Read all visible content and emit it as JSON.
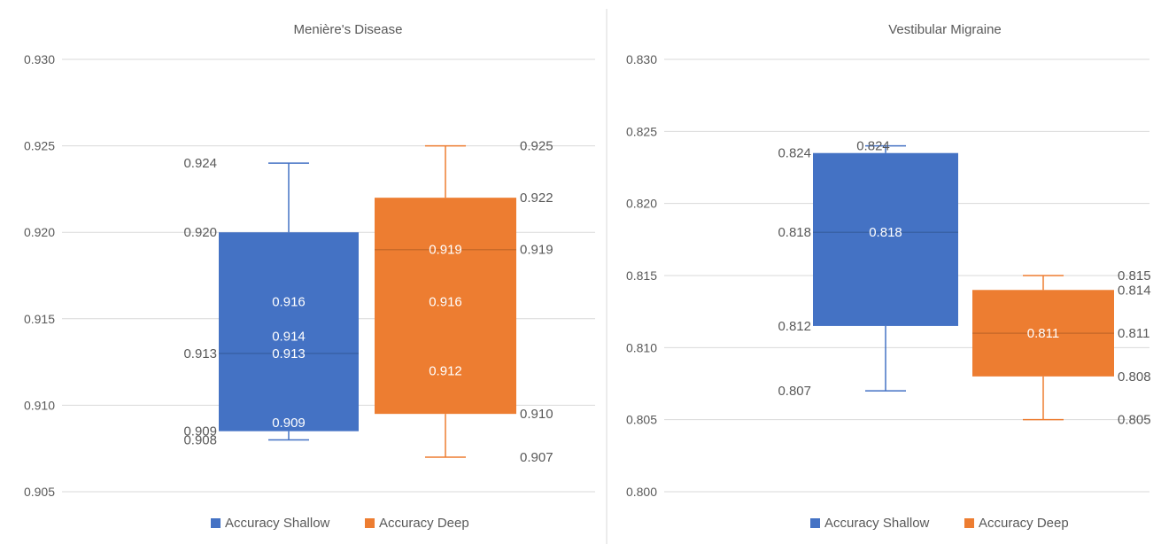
{
  "colors": {
    "shallow": "#4472c4",
    "deep": "#ed7d31",
    "grid": "#d9d9d9",
    "text": "#595959",
    "background": "#ffffff"
  },
  "chart_data": [
    {
      "type": "boxplot",
      "title": "Menière's Disease",
      "ylim": [
        0.905,
        0.93
      ],
      "yticks": [
        "0.930",
        "0.925",
        "0.920",
        "0.915",
        "0.910",
        "0.905"
      ],
      "grid": true,
      "legend_position": "bottom",
      "legend": [
        "Accuracy Shallow",
        "Accuracy Deep"
      ],
      "series": [
        {
          "name": "Accuracy Shallow",
          "min": 0.908,
          "q1": 0.9085,
          "median": 0.913,
          "q3": 0.92,
          "max": 0.924,
          "mean": 0.914,
          "labels": [
            {
              "text": "0.924",
              "value": 0.924,
              "side": "left"
            },
            {
              "text": "0.920",
              "value": 0.92,
              "side": "left"
            },
            {
              "text": "0.913",
              "value": 0.913,
              "side": "left"
            },
            {
              "text": "0.909",
              "value": 0.9085,
              "side": "left"
            },
            {
              "text": "0.908",
              "value": 0.908,
              "side": "left"
            },
            {
              "text": "0.916",
              "value": 0.916,
              "side": "inner"
            },
            {
              "text": "0.914",
              "value": 0.914,
              "side": "inner"
            },
            {
              "text": "0.913",
              "value": 0.913,
              "side": "inner"
            },
            {
              "text": "0.909",
              "value": 0.909,
              "side": "inner"
            }
          ]
        },
        {
          "name": "Accuracy Deep",
          "min": 0.907,
          "q1": 0.9095,
          "median": 0.919,
          "q3": 0.922,
          "max": 0.925,
          "mean": 0.916,
          "labels": [
            {
              "text": "0.925",
              "value": 0.925,
              "side": "right"
            },
            {
              "text": "0.922",
              "value": 0.922,
              "side": "right"
            },
            {
              "text": "0.919",
              "value": 0.919,
              "side": "right"
            },
            {
              "text": "0.910",
              "value": 0.9095,
              "side": "right"
            },
            {
              "text": "0.907",
              "value": 0.907,
              "side": "right"
            },
            {
              "text": "0.919",
              "value": 0.919,
              "side": "inner"
            },
            {
              "text": "0.916",
              "value": 0.916,
              "side": "inner"
            },
            {
              "text": "0.912",
              "value": 0.912,
              "side": "inner"
            }
          ]
        }
      ]
    },
    {
      "type": "boxplot",
      "title": "Vestibular Migraine",
      "ylim": [
        0.8,
        0.83
      ],
      "yticks": [
        "0.830",
        "0.825",
        "0.820",
        "0.815",
        "0.810",
        "0.805",
        "0.800"
      ],
      "grid": true,
      "legend_position": "bottom",
      "legend": [
        "Accuracy Shallow",
        "Accuracy Deep"
      ],
      "series": [
        {
          "name": "Accuracy Shallow",
          "min": 0.807,
          "q1": 0.8115,
          "median": 0.818,
          "q3": 0.8235,
          "max": 0.824,
          "mean": 0.818,
          "labels": [
            {
              "text": "0.824",
              "value": 0.8235,
              "side": "left"
            },
            {
              "text": "0.824",
              "value": 0.824,
              "side": "inner"
            },
            {
              "text": "0.818",
              "value": 0.818,
              "side": "left"
            },
            {
              "text": "0.812",
              "value": 0.8115,
              "side": "left"
            },
            {
              "text": "0.807",
              "value": 0.807,
              "side": "left"
            },
            {
              "text": "0.818",
              "value": 0.818,
              "side": "inner"
            }
          ]
        },
        {
          "name": "Accuracy Deep",
          "min": 0.805,
          "q1": 0.808,
          "median": 0.811,
          "q3": 0.814,
          "max": 0.815,
          "mean": 0.811,
          "labels": [
            {
              "text": "0.815",
              "value": 0.815,
              "side": "right"
            },
            {
              "text": "0.814",
              "value": 0.814,
              "side": "right"
            },
            {
              "text": "0.811",
              "value": 0.811,
              "side": "right"
            },
            {
              "text": "0.808",
              "value": 0.808,
              "side": "right"
            },
            {
              "text": "0.805",
              "value": 0.805,
              "side": "right"
            },
            {
              "text": "0.811",
              "value": 0.811,
              "side": "inner"
            }
          ]
        }
      ]
    }
  ]
}
